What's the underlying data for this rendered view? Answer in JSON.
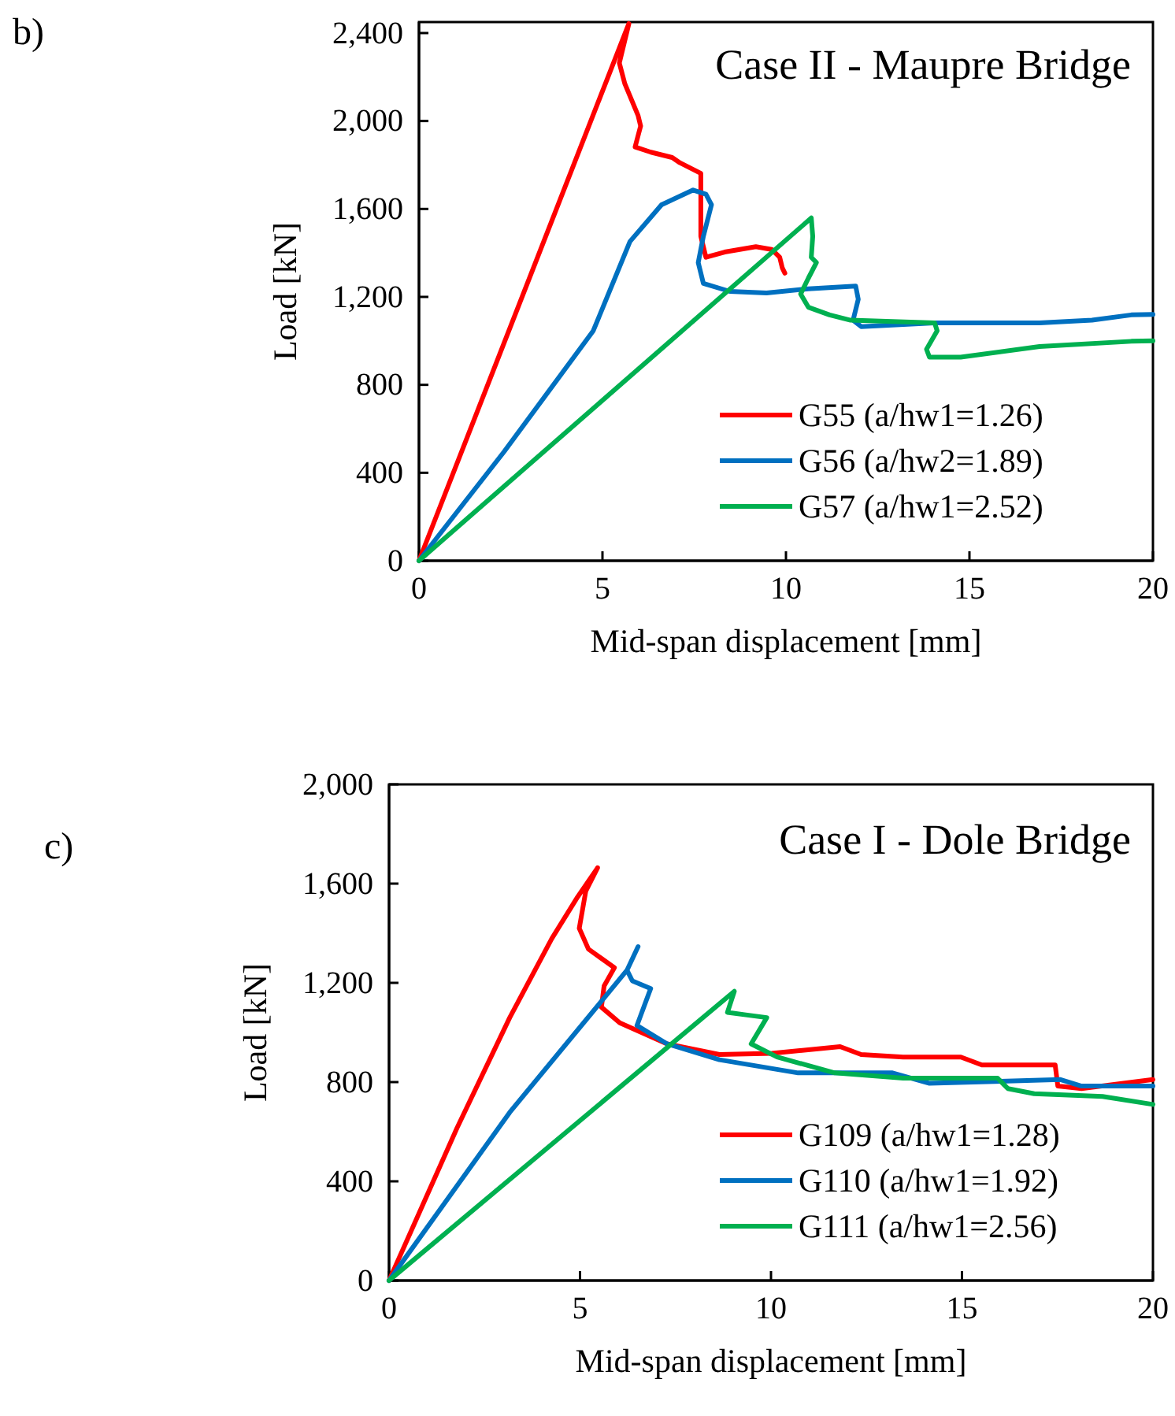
{
  "chart_data": [
    {
      "type": "line",
      "title": "Case II - Maupre Bridge",
      "xlabel": "Mid-span displacement [mm]",
      "ylabel": "Load [kN]",
      "annotations": [
        "b)"
      ],
      "legend": "bottom right",
      "xlim": [
        0,
        20
      ],
      "ylim": [
        0,
        2450
      ],
      "xticks": [
        0,
        5,
        10,
        15,
        20
      ],
      "yticks": [
        0,
        400,
        800,
        {
          "value": 1200,
          "label": "1,200"
        },
        {
          "value": 1600,
          "label": "1,600"
        },
        {
          "value": 2000,
          "label": "2,000"
        },
        {
          "value": 2400,
          "label": "2,400"
        }
      ],
      "series": [
        {
          "name": "G55 (a/hw1=1.26)",
          "color": "#ff0000",
          "x": [
            0,
            5.72,
            5.46,
            5.61,
            5.97,
            6.04,
            5.89,
            6.32,
            6.9,
            7.11,
            7.68,
            7.68,
            7.68,
            7.82,
            8.33,
            9.18,
            9.61,
            9.83,
            9.9,
            9.97
          ],
          "values": [
            0,
            2443,
            2264,
            2169,
            2025,
            1977,
            1882,
            1858,
            1834,
            1810,
            1762,
            1667,
            1476,
            1380,
            1404,
            1428,
            1416,
            1380,
            1332,
            1308
          ]
        },
        {
          "name": "G56 (a/hw2=1.89)",
          "color": "#0070c0",
          "x": [
            0,
            2.32,
            4.75,
            5.75,
            6.61,
            7.47,
            7.82,
            7.97,
            7.75,
            7.61,
            7.75,
            8.47,
            9.47,
            10.61,
            11.9,
            11.97,
            11.83,
            12.05,
            14.05,
            16.91,
            18.34,
            19.41,
            20
          ],
          "values": [
            0,
            496,
            1046,
            1452,
            1619,
            1686,
            1667,
            1619,
            1476,
            1356,
            1261,
            1225,
            1218,
            1237,
            1249,
            1189,
            1094,
            1065,
            1082,
            1082,
            1094,
            1118,
            1120
          ]
        },
        {
          "name": "G57 (a/hw1=2.52)",
          "color": "#00b050",
          "x": [
            0,
            10.69,
            10.73,
            10.69,
            10.83,
            10.61,
            10.4,
            10.61,
            11.19,
            11.76,
            14.05,
            14.12,
            13.83,
            13.91,
            14.76,
            16.91,
            19.41,
            20
          ],
          "values": [
            0,
            1559,
            1476,
            1380,
            1356,
            1285,
            1213,
            1153,
            1118,
            1094,
            1082,
            1046,
            962,
            926,
            926,
            974,
            998,
            1000
          ]
        }
      ]
    },
    {
      "type": "line",
      "title": "Case I - Dole Bridge",
      "xlabel": "Mid-span displacement [mm]",
      "ylabel": "Load [kN]",
      "annotations": [
        "c)"
      ],
      "legend": "bottom right",
      "xlim": [
        0,
        20
      ],
      "ylim": [
        0,
        2000
      ],
      "xticks": [
        0,
        5,
        10,
        15,
        20
      ],
      "yticks": [
        0,
        400,
        800,
        {
          "value": 1200,
          "label": "1,200"
        },
        {
          "value": 1600,
          "label": "1,600"
        },
        {
          "value": 2000,
          "label": "2,000"
        }
      ],
      "series": [
        {
          "name": "G109 (a/hw1=1.28)",
          "color": "#ff0000",
          "x": [
            0,
            1.78,
            3.16,
            4.26,
            4.94,
            5.46,
            5.15,
            4.98,
            5.22,
            5.9,
            5.63,
            5.56,
            6.04,
            7.28,
            8.65,
            10.02,
            11.81,
            12.36,
            13.46,
            14.97,
            15.52,
            17.44,
            17.51,
            18.13,
            20
          ],
          "values": [
            0,
            615,
            1060,
            1378,
            1547,
            1664,
            1569,
            1420,
            1336,
            1261,
            1187,
            1102,
            1039,
            954,
            911,
            916,
            943,
            911,
            901,
            901,
            869,
            869,
            784,
            774,
            810
          ]
        },
        {
          "name": "G110 (a/hw1=1.92)",
          "color": "#0070c0",
          "x": [
            0,
            3.16,
            6.23,
            6.52,
            6.23,
            6.37,
            6.85,
            6.49,
            7.28,
            8.65,
            10.71,
            13.18,
            14.15,
            17.58,
            18.13,
            20
          ],
          "values": [
            0,
            678,
            1251,
            1346,
            1251,
            1208,
            1177,
            1028,
            954,
            890,
            837,
            837,
            795,
            810,
            784,
            784
          ]
        },
        {
          "name": "G111 (a/hw1=2.56)",
          "color": "#00b050",
          "x": [
            0,
            9.04,
            8.86,
            9.34,
            9.89,
            9.48,
            10.16,
            11.67,
            13.46,
            15.93,
            16.2,
            16.89,
            18.68,
            20
          ],
          "values": [
            0,
            1166,
            1081,
            1071,
            1060,
            954,
            901,
            837,
            816,
            816,
            774,
            753,
            742,
            710
          ]
        }
      ]
    }
  ]
}
